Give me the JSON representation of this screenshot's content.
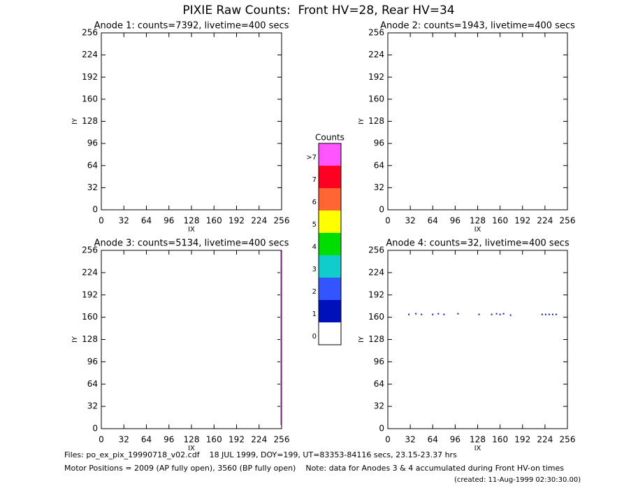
{
  "title": "PIXIE Raw Counts:  Front HV=28, Rear HV=34",
  "chart_data": [
    {
      "type": "scatter",
      "title": "Anode 1: counts=7392, livetime=400 secs",
      "xlabel": "IX",
      "ylabel": "IY",
      "xlim": [
        0,
        256
      ],
      "ylim": [
        0,
        256
      ],
      "xticks": [
        0,
        32,
        64,
        96,
        128,
        160,
        192,
        224,
        256
      ],
      "yticks": [
        0,
        32,
        64,
        96,
        128,
        160,
        192,
        224,
        256
      ]
    },
    {
      "type": "scatter",
      "title": "Anode 2: counts=1943, livetime=400 secs",
      "xlabel": "IX",
      "ylabel": "IY",
      "xlim": [
        0,
        256
      ],
      "ylim": [
        0,
        256
      ],
      "xticks": [
        0,
        32,
        64,
        96,
        128,
        160,
        192,
        224,
        256
      ],
      "yticks": [
        0,
        32,
        64,
        96,
        128,
        160,
        192,
        224,
        256
      ]
    },
    {
      "type": "line",
      "title": "Anode 3: counts=5134, livetime=400 secs",
      "xlabel": "IX",
      "ylabel": "IY",
      "xlim": [
        0,
        256
      ],
      "ylim": [
        0,
        256
      ],
      "xticks": [
        0,
        32,
        64,
        96,
        128,
        160,
        192,
        224,
        256
      ],
      "yticks": [
        0,
        32,
        64,
        96,
        128,
        160,
        192,
        224,
        256
      ],
      "series": [
        {
          "color": "#ff66ff",
          "x": [
            255,
            255
          ],
          "values": [
            5,
            256
          ]
        }
      ]
    },
    {
      "type": "scatter",
      "title": "Anode 4: counts=32, livetime=400 secs",
      "xlabel": "IX",
      "ylabel": "IY",
      "xlim": [
        0,
        256
      ],
      "ylim": [
        0,
        256
      ],
      "xticks": [
        0,
        32,
        64,
        96,
        128,
        160,
        192,
        224,
        256
      ],
      "yticks": [
        0,
        32,
        64,
        96,
        128,
        160,
        192,
        224,
        256
      ],
      "series": [
        {
          "color": "#0011bb",
          "x": [
            30,
            40,
            48,
            64,
            72,
            80,
            100,
            130,
            148,
            155,
            160,
            165,
            175,
            220,
            225,
            230,
            235,
            240
          ],
          "values": [
            164,
            165,
            164,
            164,
            165,
            164,
            165,
            164,
            164,
            165,
            164,
            165,
            163,
            164,
            164,
            164,
            164,
            164
          ]
        }
      ]
    },
    {
      "type": "colorbar",
      "title": "Counts",
      "labels": [
        ">7",
        "7",
        "6",
        "5",
        "4",
        "3",
        "2",
        "1",
        "0"
      ],
      "colors": [
        "#ff55ff",
        "#ff0022",
        "#ff6633",
        "#ffff00",
        "#00dd00",
        "#11cccc",
        "#3355ff",
        "#0011bb",
        "#ffffff"
      ]
    }
  ],
  "footer": {
    "files": "Files: po_ex_pix_19990718_v02.cdf    18 JUL 1999, DOY=199, UT=83353-84116 secs, 23.15-23.37 hrs",
    "motor": "Motor Positions = 2009 (AP fully open), 3560 (BP fully open)    Note: data for Anodes 3 & 4 accumulated during Front HV-on times",
    "created": "(created: 11-Aug-1999 02:30:30.00)"
  }
}
